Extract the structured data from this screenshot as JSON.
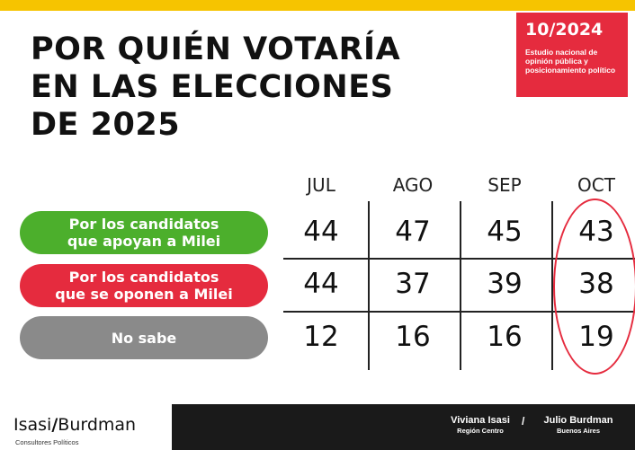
{
  "title_lines": [
    "POR QUIÉN VOTARÍA",
    "EN LAS ELECCIONES",
    "DE 2025"
  ],
  "badge": {
    "date": "10/2024",
    "description": "Estudio nacional de opinión pública y posicionamiento político"
  },
  "colors": {
    "top_bar": "#f6c400",
    "badge": "#e52b3e",
    "pro_milei": "#4caf2c",
    "anti_milei": "#e52b3e",
    "no_sabe": "#8a8a8a",
    "highlight": "#e52b3e"
  },
  "chart_data": {
    "type": "table",
    "columns": [
      "JUL",
      "AGO",
      "SEP",
      "OCT"
    ],
    "rows": [
      {
        "label_lines": [
          "Por los candidatos",
          "que apoyan a Milei"
        ],
        "values": [
          44,
          47,
          45,
          43
        ]
      },
      {
        "label_lines": [
          "Por los candidatos",
          "que se oponen a Milei"
        ],
        "values": [
          44,
          37,
          39,
          38
        ]
      },
      {
        "label_lines": [
          "No sabe"
        ],
        "values": [
          12,
          16,
          16,
          19
        ]
      }
    ],
    "highlighted_column": "OCT"
  },
  "footer": {
    "logo_left": "Isasi",
    "logo_slash": "/",
    "logo_right": "Burdman",
    "logo_subtitle": "Consultores Políticos",
    "person1": {
      "name": "Viviana Isasi",
      "region": "Región Centro"
    },
    "separator": "/",
    "person2": {
      "name": "Julio Burdman",
      "region": "Buenos Aires"
    }
  }
}
